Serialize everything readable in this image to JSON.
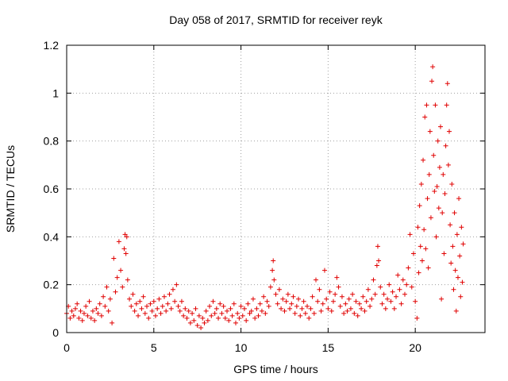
{
  "chart_data": {
    "type": "scatter",
    "title": "Day 058 of 2017, SRMTID for receiver reyk",
    "xlabel": "GPS time / hours",
    "ylabel": "SRMTID / TECUs",
    "xlim": [
      0,
      24
    ],
    "ylim": [
      0,
      1.2
    ],
    "xticks": [
      0,
      5,
      10,
      15,
      20
    ],
    "yticks": [
      0,
      0.2,
      0.4,
      0.6,
      0.8,
      1,
      1.2
    ],
    "grid": true,
    "marker": "+",
    "color": "#e00000",
    "series": [
      {
        "name": "SRMTID",
        "points": [
          [
            0.0,
            0.08
          ],
          [
            0.1,
            0.11
          ],
          [
            0.2,
            0.06
          ],
          [
            0.3,
            0.09
          ],
          [
            0.4,
            0.07
          ],
          [
            0.5,
            0.1
          ],
          [
            0.6,
            0.12
          ],
          [
            0.7,
            0.06
          ],
          [
            0.8,
            0.09
          ],
          [
            0.9,
            0.05
          ],
          [
            1.0,
            0.08
          ],
          [
            1.1,
            0.11
          ],
          [
            1.2,
            0.07
          ],
          [
            1.3,
            0.13
          ],
          [
            1.4,
            0.06
          ],
          [
            1.5,
            0.09
          ],
          [
            1.6,
            0.05
          ],
          [
            1.7,
            0.1
          ],
          [
            1.8,
            0.08
          ],
          [
            1.9,
            0.12
          ],
          [
            2.0,
            0.07
          ],
          [
            2.1,
            0.15
          ],
          [
            2.2,
            0.11
          ],
          [
            2.3,
            0.19
          ],
          [
            2.4,
            0.09
          ],
          [
            2.5,
            0.14
          ],
          [
            2.6,
            0.04
          ],
          [
            2.7,
            0.31
          ],
          [
            2.8,
            0.17
          ],
          [
            2.9,
            0.23
          ],
          [
            3.0,
            0.38
          ],
          [
            3.1,
            0.26
          ],
          [
            3.2,
            0.19
          ],
          [
            3.3,
            0.35
          ],
          [
            3.35,
            0.41
          ],
          [
            3.4,
            0.33
          ],
          [
            3.45,
            0.4
          ],
          [
            3.5,
            0.22
          ],
          [
            3.6,
            0.14
          ],
          [
            3.7,
            0.11
          ],
          [
            3.8,
            0.16
          ],
          [
            3.9,
            0.09
          ],
          [
            4.0,
            0.12
          ],
          [
            4.1,
            0.07
          ],
          [
            4.2,
            0.13
          ],
          [
            4.3,
            0.1
          ],
          [
            4.4,
            0.15
          ],
          [
            4.5,
            0.08
          ],
          [
            4.6,
            0.11
          ],
          [
            4.7,
            0.06
          ],
          [
            4.8,
            0.12
          ],
          [
            4.9,
            0.09
          ],
          [
            5.0,
            0.13
          ],
          [
            5.1,
            0.07
          ],
          [
            5.2,
            0.1
          ],
          [
            5.3,
            0.14
          ],
          [
            5.4,
            0.08
          ],
          [
            5.5,
            0.11
          ],
          [
            5.6,
            0.15
          ],
          [
            5.7,
            0.09
          ],
          [
            5.8,
            0.12
          ],
          [
            5.9,
            0.16
          ],
          [
            6.0,
            0.1
          ],
          [
            6.1,
            0.18
          ],
          [
            6.2,
            0.13
          ],
          [
            6.3,
            0.2
          ],
          [
            6.4,
            0.11
          ],
          [
            6.5,
            0.09
          ],
          [
            6.6,
            0.13
          ],
          [
            6.7,
            0.07
          ],
          [
            6.8,
            0.1
          ],
          [
            6.9,
            0.06
          ],
          [
            7.0,
            0.09
          ],
          [
            7.1,
            0.04
          ],
          [
            7.2,
            0.08
          ],
          [
            7.3,
            0.05
          ],
          [
            7.4,
            0.1
          ],
          [
            7.5,
            0.03
          ],
          [
            7.6,
            0.07
          ],
          [
            7.7,
            0.02
          ],
          [
            7.8,
            0.06
          ],
          [
            7.9,
            0.04
          ],
          [
            8.0,
            0.09
          ],
          [
            8.1,
            0.05
          ],
          [
            8.2,
            0.11
          ],
          [
            8.3,
            0.07
          ],
          [
            8.4,
            0.13
          ],
          [
            8.5,
            0.08
          ],
          [
            8.6,
            0.1
          ],
          [
            8.7,
            0.06
          ],
          [
            8.8,
            0.12
          ],
          [
            8.9,
            0.08
          ],
          [
            9.0,
            0.11
          ],
          [
            9.1,
            0.06
          ],
          [
            9.2,
            0.09
          ],
          [
            9.3,
            0.05
          ],
          [
            9.4,
            0.1
          ],
          [
            9.5,
            0.07
          ],
          [
            9.6,
            0.12
          ],
          [
            9.7,
            0.04
          ],
          [
            9.8,
            0.08
          ],
          [
            9.9,
            0.06
          ],
          [
            10.0,
            0.11
          ],
          [
            10.1,
            0.07
          ],
          [
            10.2,
            0.1
          ],
          [
            10.3,
            0.05
          ],
          [
            10.4,
            0.12
          ],
          [
            10.5,
            0.08
          ],
          [
            10.6,
            0.09
          ],
          [
            10.7,
            0.14
          ],
          [
            10.8,
            0.06
          ],
          [
            10.9,
            0.1
          ],
          [
            11.0,
            0.07
          ],
          [
            11.1,
            0.12
          ],
          [
            11.2,
            0.09
          ],
          [
            11.3,
            0.15
          ],
          [
            11.4,
            0.08
          ],
          [
            11.5,
            0.13
          ],
          [
            11.6,
            0.11
          ],
          [
            11.7,
            0.19
          ],
          [
            11.8,
            0.26
          ],
          [
            11.85,
            0.3
          ],
          [
            11.9,
            0.22
          ],
          [
            12.0,
            0.16
          ],
          [
            12.1,
            0.12
          ],
          [
            12.2,
            0.18
          ],
          [
            12.3,
            0.1
          ],
          [
            12.4,
            0.14
          ],
          [
            12.5,
            0.09
          ],
          [
            12.6,
            0.13
          ],
          [
            12.7,
            0.16
          ],
          [
            12.8,
            0.1
          ],
          [
            12.9,
            0.12
          ],
          [
            13.0,
            0.15
          ],
          [
            13.1,
            0.08
          ],
          [
            13.2,
            0.11
          ],
          [
            13.3,
            0.14
          ],
          [
            13.4,
            0.07
          ],
          [
            13.5,
            0.1
          ],
          [
            13.6,
            0.13
          ],
          [
            13.7,
            0.08
          ],
          [
            13.8,
            0.11
          ],
          [
            13.9,
            0.06
          ],
          [
            14.0,
            0.1
          ],
          [
            14.1,
            0.15
          ],
          [
            14.2,
            0.08
          ],
          [
            14.3,
            0.22
          ],
          [
            14.4,
            0.13
          ],
          [
            14.5,
            0.18
          ],
          [
            14.6,
            0.09
          ],
          [
            14.7,
            0.12
          ],
          [
            14.8,
            0.26
          ],
          [
            14.9,
            0.14
          ],
          [
            15.0,
            0.1
          ],
          [
            15.1,
            0.17
          ],
          [
            15.2,
            0.09
          ],
          [
            15.3,
            0.13
          ],
          [
            15.4,
            0.16
          ],
          [
            15.5,
            0.23
          ],
          [
            15.6,
            0.19
          ],
          [
            15.7,
            0.11
          ],
          [
            15.8,
            0.15
          ],
          [
            15.9,
            0.08
          ],
          [
            16.0,
            0.12
          ],
          [
            16.1,
            0.09
          ],
          [
            16.2,
            0.14
          ],
          [
            16.3,
            0.1
          ],
          [
            16.4,
            0.16
          ],
          [
            16.5,
            0.08
          ],
          [
            16.6,
            0.13
          ],
          [
            16.7,
            0.07
          ],
          [
            16.8,
            0.12
          ],
          [
            16.9,
            0.1
          ],
          [
            17.0,
            0.15
          ],
          [
            17.1,
            0.09
          ],
          [
            17.2,
            0.13
          ],
          [
            17.3,
            0.18
          ],
          [
            17.4,
            0.11
          ],
          [
            17.5,
            0.14
          ],
          [
            17.6,
            0.22
          ],
          [
            17.7,
            0.16
          ],
          [
            17.8,
            0.28
          ],
          [
            17.85,
            0.36
          ],
          [
            17.9,
            0.3
          ],
          [
            18.0,
            0.19
          ],
          [
            18.1,
            0.12
          ],
          [
            18.2,
            0.16
          ],
          [
            18.3,
            0.1
          ],
          [
            18.4,
            0.14
          ],
          [
            18.5,
            0.2
          ],
          [
            18.6,
            0.13
          ],
          [
            18.7,
            0.17
          ],
          [
            18.8,
            0.1
          ],
          [
            18.9,
            0.15
          ],
          [
            19.0,
            0.24
          ],
          [
            19.1,
            0.18
          ],
          [
            19.2,
            0.12
          ],
          [
            19.3,
            0.22
          ],
          [
            19.4,
            0.16
          ],
          [
            19.5,
            0.2
          ],
          [
            19.6,
            0.27
          ],
          [
            19.7,
            0.41
          ],
          [
            19.8,
            0.19
          ],
          [
            19.9,
            0.33
          ],
          [
            20.0,
            0.13
          ],
          [
            20.1,
            0.06
          ],
          [
            20.15,
            0.44
          ],
          [
            20.2,
            0.25
          ],
          [
            20.25,
            0.53
          ],
          [
            20.3,
            0.36
          ],
          [
            20.35,
            0.62
          ],
          [
            20.4,
            0.3
          ],
          [
            20.45,
            0.72
          ],
          [
            20.5,
            0.43
          ],
          [
            20.55,
            0.9
          ],
          [
            20.6,
            0.35
          ],
          [
            20.65,
            0.95
          ],
          [
            20.7,
            0.56
          ],
          [
            20.75,
            0.27
          ],
          [
            20.8,
            0.66
          ],
          [
            20.85,
            0.84
          ],
          [
            20.9,
            0.48
          ],
          [
            20.95,
            1.05
          ],
          [
            21.0,
            1.11
          ],
          [
            21.05,
            0.74
          ],
          [
            21.1,
            0.59
          ],
          [
            21.15,
            0.95
          ],
          [
            21.2,
            0.4
          ],
          [
            21.25,
            0.61
          ],
          [
            21.3,
            0.8
          ],
          [
            21.35,
            0.52
          ],
          [
            21.4,
            0.69
          ],
          [
            21.45,
            0.86
          ],
          [
            21.5,
            0.14
          ],
          [
            21.55,
            0.5
          ],
          [
            21.6,
            0.66
          ],
          [
            21.65,
            0.33
          ],
          [
            21.7,
            0.58
          ],
          [
            21.75,
            0.78
          ],
          [
            21.8,
            0.95
          ],
          [
            21.85,
            1.04
          ],
          [
            21.9,
            0.7
          ],
          [
            21.95,
            0.84
          ],
          [
            22.0,
            0.45
          ],
          [
            22.05,
            0.29
          ],
          [
            22.1,
            0.62
          ],
          [
            22.15,
            0.36
          ],
          [
            22.2,
            0.18
          ],
          [
            22.25,
            0.5
          ],
          [
            22.3,
            0.26
          ],
          [
            22.35,
            0.09
          ],
          [
            22.4,
            0.41
          ],
          [
            22.45,
            0.23
          ],
          [
            22.5,
            0.56
          ],
          [
            22.55,
            0.32
          ],
          [
            22.6,
            0.15
          ],
          [
            22.65,
            0.44
          ],
          [
            22.7,
            0.21
          ],
          [
            22.75,
            0.37
          ]
        ]
      }
    ]
  }
}
